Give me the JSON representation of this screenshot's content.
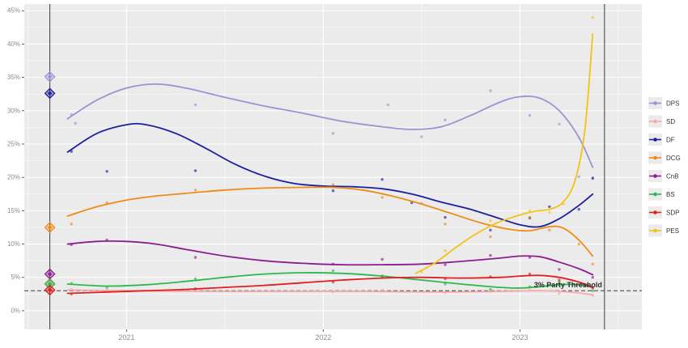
{
  "chart_data": {
    "type": "line",
    "title": "",
    "description": "Opinion polling line chart with smoothed trend lines, scatter points, election result diamond markers at vertical election-date lines, and a dashed 3% party threshold line",
    "x_axis": {
      "range": [
        2020.48,
        2023.62
      ],
      "ticks": [
        {
          "v": 2021,
          "label": "2021"
        },
        {
          "v": 2022,
          "label": "2022"
        },
        {
          "v": 2023,
          "label": "2023"
        }
      ],
      "minor_ticks": [
        2020.5,
        2021.5,
        2022.5,
        2023.5
      ]
    },
    "y_axis": {
      "range": [
        -2.8,
        46
      ],
      "unit": "%",
      "ticks": [
        {
          "v": 0,
          "label": "0%"
        },
        {
          "v": 5,
          "label": "5%"
        },
        {
          "v": 10,
          "label": "10%"
        },
        {
          "v": 15,
          "label": "15%"
        },
        {
          "v": 20,
          "label": "20%"
        },
        {
          "v": 25,
          "label": "25%"
        },
        {
          "v": 30,
          "label": "30%"
        },
        {
          "v": 35,
          "label": "35%"
        },
        {
          "v": 40,
          "label": "40%"
        },
        {
          "v": 45,
          "label": "45%"
        }
      ],
      "minor_step": 2.5
    },
    "threshold": {
      "value": 3,
      "label": "3% Party Threshold",
      "color": "#3c3c3c"
    },
    "election_lines": [
      2020.61,
      2023.43
    ],
    "panel_bg": "#ebebeb",
    "grid_color": "#ffffff",
    "axis_text_color": "#8c8c8c",
    "series": [
      {
        "name": "DPS",
        "color": "#9795d6",
        "election_result": {
          "x": 2020.61,
          "y": 35.1
        },
        "trend": [
          [
            2020.7,
            28.8
          ],
          [
            2020.85,
            31.6
          ],
          [
            2021.0,
            33.4
          ],
          [
            2021.15,
            34.0
          ],
          [
            2021.3,
            33.4
          ],
          [
            2021.5,
            32.0
          ],
          [
            2021.7,
            30.7
          ],
          [
            2021.9,
            29.6
          ],
          [
            2022.1,
            28.4
          ],
          [
            2022.3,
            27.6
          ],
          [
            2022.45,
            27.2
          ],
          [
            2022.6,
            27.6
          ],
          [
            2022.75,
            29.3
          ],
          [
            2022.9,
            31.3
          ],
          [
            2023.0,
            32.1
          ],
          [
            2023.1,
            31.9
          ],
          [
            2023.2,
            30.0
          ],
          [
            2023.3,
            26.0
          ],
          [
            2023.37,
            21.5
          ]
        ],
        "dots": [
          [
            2020.72,
            29.4
          ],
          [
            2020.74,
            28.1
          ],
          [
            2021.35,
            30.9
          ],
          [
            2022.05,
            26.6
          ],
          [
            2022.33,
            30.9
          ],
          [
            2022.5,
            26.1
          ],
          [
            2022.62,
            28.6
          ],
          [
            2022.85,
            33.0
          ],
          [
            2023.05,
            29.3
          ],
          [
            2023.2,
            28.0
          ],
          [
            2023.3,
            20.1
          ],
          [
            2023.37,
            19.8
          ]
        ]
      },
      {
        "name": "SD",
        "color": "#f6a9a9",
        "election_result": {
          "x": 2020.61,
          "y": 4.1
        },
        "trend": [
          [
            2020.7,
            3.1
          ],
          [
            2021.0,
            3.0
          ],
          [
            2021.4,
            2.9
          ],
          [
            2021.8,
            2.9
          ],
          [
            2022.2,
            2.9
          ],
          [
            2022.6,
            2.8
          ],
          [
            2022.9,
            2.9
          ],
          [
            2023.1,
            3.0
          ],
          [
            2023.25,
            2.8
          ],
          [
            2023.37,
            2.4
          ]
        ],
        "dots": [
          [
            2020.72,
            3.2
          ],
          [
            2020.9,
            2.9
          ],
          [
            2021.35,
            3.0
          ],
          [
            2022.05,
            2.8
          ],
          [
            2022.3,
            3.1
          ],
          [
            2022.62,
            2.7
          ],
          [
            2022.85,
            2.9
          ],
          [
            2023.05,
            3.1
          ],
          [
            2023.2,
            2.6
          ],
          [
            2023.37,
            2.3
          ]
        ]
      },
      {
        "name": "DF",
        "color": "#1f1f9e",
        "election_result": {
          "x": 2020.61,
          "y": 32.6
        },
        "trend": [
          [
            2020.7,
            23.8
          ],
          [
            2020.85,
            26.6
          ],
          [
            2021.0,
            27.9
          ],
          [
            2021.1,
            27.9
          ],
          [
            2021.25,
            26.6
          ],
          [
            2021.4,
            24.4
          ],
          [
            2021.55,
            22.0
          ],
          [
            2021.7,
            20.2
          ],
          [
            2021.85,
            19.1
          ],
          [
            2022.0,
            18.7
          ],
          [
            2022.15,
            18.6
          ],
          [
            2022.3,
            18.3
          ],
          [
            2022.45,
            17.5
          ],
          [
            2022.6,
            16.3
          ],
          [
            2022.75,
            15.2
          ],
          [
            2022.9,
            13.8
          ],
          [
            2023.0,
            12.9
          ],
          [
            2023.1,
            12.6
          ],
          [
            2023.2,
            13.8
          ],
          [
            2023.3,
            15.8
          ],
          [
            2023.37,
            17.5
          ]
        ],
        "dots": [
          [
            2020.72,
            23.9
          ],
          [
            2020.9,
            20.9
          ],
          [
            2021.35,
            21.0
          ],
          [
            2022.05,
            18.0
          ],
          [
            2022.3,
            19.7
          ],
          [
            2022.45,
            16.2
          ],
          [
            2022.62,
            14.0
          ],
          [
            2022.85,
            12.1
          ],
          [
            2023.05,
            13.9
          ],
          [
            2023.15,
            15.6
          ],
          [
            2023.3,
            15.2
          ],
          [
            2023.37,
            19.9
          ]
        ]
      },
      {
        "name": "DCG",
        "color": "#ef8b17",
        "election_result": {
          "x": 2020.61,
          "y": 12.5
        },
        "trend": [
          [
            2020.7,
            14.2
          ],
          [
            2020.85,
            15.6
          ],
          [
            2021.0,
            16.6
          ],
          [
            2021.15,
            17.2
          ],
          [
            2021.3,
            17.6
          ],
          [
            2021.5,
            18.1
          ],
          [
            2021.7,
            18.4
          ],
          [
            2021.9,
            18.5
          ],
          [
            2022.05,
            18.5
          ],
          [
            2022.2,
            18.1
          ],
          [
            2022.35,
            17.2
          ],
          [
            2022.5,
            16.0
          ],
          [
            2022.65,
            14.6
          ],
          [
            2022.8,
            13.2
          ],
          [
            2022.95,
            12.2
          ],
          [
            2023.05,
            12.0
          ],
          [
            2023.15,
            12.6
          ],
          [
            2023.22,
            12.4
          ],
          [
            2023.3,
            10.6
          ],
          [
            2023.37,
            8.2
          ]
        ],
        "dots": [
          [
            2020.72,
            13.0
          ],
          [
            2020.9,
            16.2
          ],
          [
            2021.35,
            18.1
          ],
          [
            2022.05,
            18.9
          ],
          [
            2022.3,
            17.0
          ],
          [
            2022.5,
            16.1
          ],
          [
            2022.62,
            13.0
          ],
          [
            2022.85,
            11.1
          ],
          [
            2023.05,
            14.0
          ],
          [
            2023.15,
            12.1
          ],
          [
            2023.3,
            10.0
          ],
          [
            2023.37,
            7.0
          ]
        ]
      },
      {
        "name": "CnB",
        "color": "#8c1d91",
        "election_result": {
          "x": 2020.61,
          "y": 5.5
        },
        "trend": [
          [
            2020.7,
            10.0
          ],
          [
            2020.85,
            10.4
          ],
          [
            2021.0,
            10.4
          ],
          [
            2021.15,
            10.0
          ],
          [
            2021.3,
            9.2
          ],
          [
            2021.5,
            8.2
          ],
          [
            2021.7,
            7.5
          ],
          [
            2021.9,
            7.1
          ],
          [
            2022.1,
            6.9
          ],
          [
            2022.3,
            6.9
          ],
          [
            2022.5,
            7.0
          ],
          [
            2022.7,
            7.4
          ],
          [
            2022.9,
            7.9
          ],
          [
            2023.0,
            8.2
          ],
          [
            2023.1,
            8.1
          ],
          [
            2023.2,
            7.3
          ],
          [
            2023.3,
            6.3
          ],
          [
            2023.37,
            5.4
          ]
        ],
        "dots": [
          [
            2020.72,
            9.9
          ],
          [
            2020.9,
            10.6
          ],
          [
            2021.35,
            8.0
          ],
          [
            2022.05,
            7.0
          ],
          [
            2022.3,
            7.7
          ],
          [
            2022.62,
            6.9
          ],
          [
            2022.85,
            8.3
          ],
          [
            2023.05,
            8.0
          ],
          [
            2023.2,
            6.2
          ],
          [
            2023.37,
            5.0
          ]
        ]
      },
      {
        "name": "BS",
        "color": "#2eb84d",
        "election_result": {
          "x": 2020.61,
          "y": 4.0
        },
        "trend": [
          [
            2020.7,
            4.0
          ],
          [
            2020.9,
            3.7
          ],
          [
            2021.1,
            3.9
          ],
          [
            2021.3,
            4.4
          ],
          [
            2021.5,
            5.0
          ],
          [
            2021.7,
            5.5
          ],
          [
            2021.9,
            5.7
          ],
          [
            2022.1,
            5.6
          ],
          [
            2022.3,
            5.2
          ],
          [
            2022.5,
            4.6
          ],
          [
            2022.7,
            4.0
          ],
          [
            2022.9,
            3.5
          ],
          [
            2023.0,
            3.4
          ],
          [
            2023.1,
            3.6
          ],
          [
            2023.2,
            3.9
          ],
          [
            2023.3,
            3.9
          ],
          [
            2023.37,
            3.5
          ]
        ],
        "dots": [
          [
            2020.72,
            4.1
          ],
          [
            2020.9,
            3.5
          ],
          [
            2021.35,
            4.8
          ],
          [
            2022.05,
            6.0
          ],
          [
            2022.3,
            5.1
          ],
          [
            2022.62,
            4.0
          ],
          [
            2022.85,
            3.2
          ],
          [
            2023.05,
            3.6
          ],
          [
            2023.2,
            4.3
          ],
          [
            2023.37,
            3.0
          ]
        ]
      },
      {
        "name": "SDP",
        "color": "#e01f1f",
        "election_result": {
          "x": 2020.61,
          "y": 3.1
        },
        "trend": [
          [
            2020.7,
            2.6
          ],
          [
            2020.9,
            2.8
          ],
          [
            2021.1,
            3.0
          ],
          [
            2021.3,
            3.2
          ],
          [
            2021.5,
            3.5
          ],
          [
            2021.7,
            3.8
          ],
          [
            2021.9,
            4.2
          ],
          [
            2022.1,
            4.6
          ],
          [
            2022.3,
            4.9
          ],
          [
            2022.5,
            5.0
          ],
          [
            2022.7,
            4.9
          ],
          [
            2022.9,
            5.0
          ],
          [
            2023.0,
            5.2
          ],
          [
            2023.1,
            5.3
          ],
          [
            2023.2,
            5.0
          ],
          [
            2023.3,
            4.3
          ],
          [
            2023.37,
            3.5
          ]
        ],
        "dots": [
          [
            2020.72,
            2.5
          ],
          [
            2020.9,
            3.0
          ],
          [
            2021.35,
            3.3
          ],
          [
            2022.05,
            4.3
          ],
          [
            2022.3,
            5.2
          ],
          [
            2022.62,
            4.8
          ],
          [
            2022.85,
            5.1
          ],
          [
            2023.05,
            5.5
          ],
          [
            2023.2,
            4.6
          ],
          [
            2023.37,
            3.4
          ]
        ]
      },
      {
        "name": "PES",
        "color": "#f2c414",
        "election_result": null,
        "trend": [
          [
            2022.47,
            5.6
          ],
          [
            2022.57,
            7.2
          ],
          [
            2022.67,
            9.4
          ],
          [
            2022.77,
            11.4
          ],
          [
            2022.87,
            13.0
          ],
          [
            2022.97,
            14.1
          ],
          [
            2023.07,
            14.9
          ],
          [
            2023.15,
            15.2
          ],
          [
            2023.22,
            16.3
          ],
          [
            2023.28,
            19.5
          ],
          [
            2023.33,
            27.0
          ],
          [
            2023.37,
            41.5
          ]
        ],
        "dots": [
          [
            2022.5,
            5.8
          ],
          [
            2022.62,
            9.0
          ],
          [
            2022.85,
            13.5
          ],
          [
            2023.05,
            15.0
          ],
          [
            2023.15,
            14.8
          ],
          [
            2023.22,
            16.0
          ],
          [
            2023.3,
            26.0
          ],
          [
            2023.37,
            44.0
          ]
        ]
      }
    ],
    "legend": {
      "position": "right",
      "items": [
        "DPS",
        "SD",
        "DF",
        "DCG",
        "CnB",
        "BS",
        "SDP",
        "PES"
      ]
    }
  }
}
